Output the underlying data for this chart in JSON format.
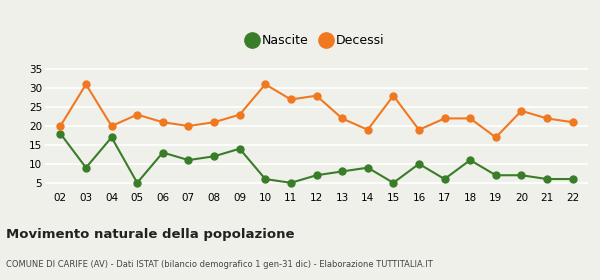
{
  "years": [
    2,
    3,
    4,
    5,
    6,
    7,
    8,
    9,
    10,
    11,
    12,
    13,
    14,
    15,
    16,
    17,
    18,
    19,
    20,
    21,
    22
  ],
  "nascite": [
    18,
    9,
    17,
    5,
    13,
    11,
    12,
    14,
    6,
    5,
    7,
    8,
    9,
    5,
    10,
    6,
    11,
    7,
    7,
    6,
    6
  ],
  "decessi": [
    20,
    31,
    20,
    23,
    21,
    20,
    21,
    23,
    31,
    27,
    28,
    22,
    19,
    28,
    19,
    22,
    22,
    17,
    24,
    22,
    21
  ],
  "nascite_color": "#3a7d29",
  "decessi_color": "#f07820",
  "background_color": "#f0f0eb",
  "grid_color": "#ffffff",
  "title": "Movimento naturale della popolazione",
  "subtitle": "COMUNE DI CARIFE (AV) - Dati ISTAT (bilancio demografico 1 gen-31 dic) - Elaborazione TUTTITALIA.IT",
  "ylabel_ticks": [
    5,
    10,
    15,
    20,
    25,
    30,
    35
  ],
  "ylim": [
    3,
    37
  ],
  "legend_labels": [
    "Nascite",
    "Decessi"
  ],
  "marker_size": 5,
  "line_width": 1.5
}
